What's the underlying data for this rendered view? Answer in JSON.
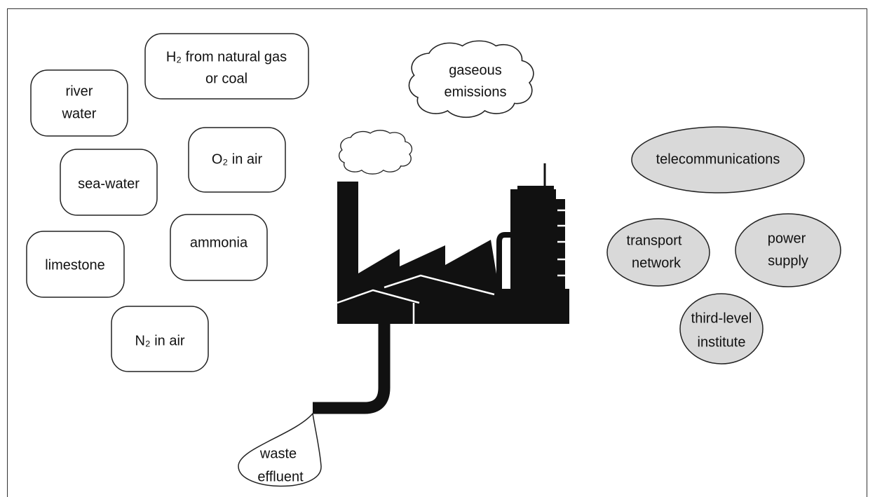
{
  "boxes": [
    {
      "lines": [
        "H₂ from natural gas",
        "or coal"
      ]
    },
    {
      "lines": [
        "river",
        "water"
      ]
    },
    {
      "lines": [
        "O₂ in air"
      ]
    },
    {
      "lines": [
        "sea-water"
      ]
    },
    {
      "lines": [
        "ammonia"
      ]
    },
    {
      "lines": [
        "limestone"
      ]
    },
    {
      "lines": [
        "N₂ in air"
      ]
    }
  ],
  "ellipses": [
    {
      "lines": [
        "telecommunications"
      ]
    },
    {
      "lines": [
        "transport",
        "network"
      ]
    },
    {
      "lines": [
        "power",
        "supply"
      ]
    },
    {
      "lines": [
        "third-level",
        "institute"
      ]
    }
  ],
  "cloud": {
    "lines": [
      "gaseous",
      "emissions"
    ]
  },
  "effluent": {
    "lines": [
      "waste",
      "effluent"
    ]
  }
}
